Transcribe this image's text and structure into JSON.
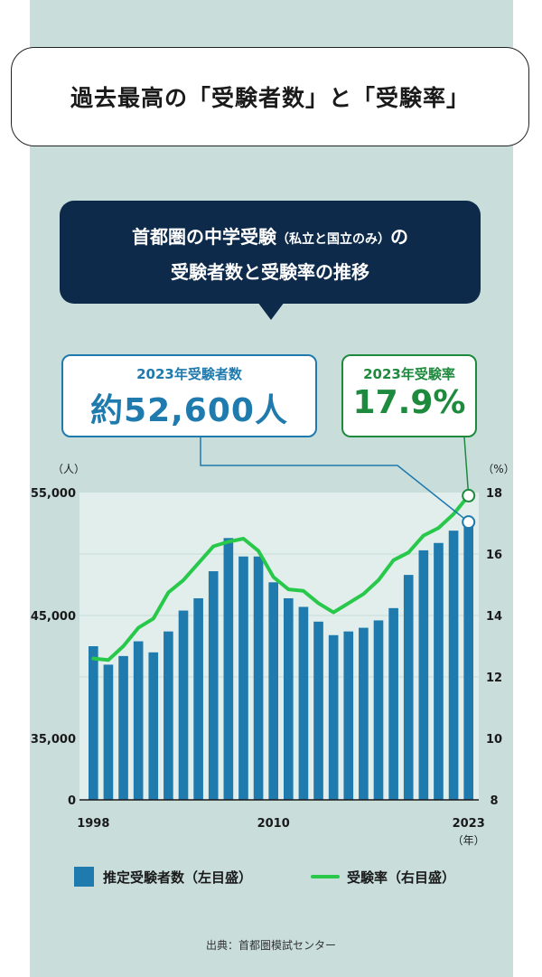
{
  "title": "過去最高の「受験者数」と「受験率」",
  "subtitle": {
    "line1_a": "首都圏の中学受験",
    "line1_b": "（私立と国立のみ）",
    "line1_c": "の",
    "line2": "受験者数と受験率の推移"
  },
  "callouts": {
    "count_label": "2023年受験者数",
    "count_value": "約52,600人",
    "rate_label": "2023年受験率",
    "rate_value": "17.9%"
  },
  "legend": {
    "bars": "推定受験者数（左目盛）",
    "line": "受験率（右目盛）"
  },
  "source": "出典：首都圏模試センター",
  "colors": {
    "bar": "#1f7aad",
    "line": "#28c84a",
    "background": "#c9dedb",
    "plot_background": "#e1eeec",
    "title_box": "#0d2a4a"
  },
  "chart_data": {
    "type": "bar",
    "x": [
      1998,
      1999,
      2000,
      2001,
      2002,
      2003,
      2004,
      2005,
      2006,
      2007,
      2008,
      2009,
      2010,
      2011,
      2012,
      2013,
      2014,
      2015,
      2016,
      2017,
      2018,
      2019,
      2020,
      2021,
      2022,
      2023
    ],
    "x_tick_labels": [
      "1998",
      "2010",
      "2023"
    ],
    "x_tick_values": [
      1998,
      2010,
      2023
    ],
    "x_unit": "（年）",
    "series": [
      {
        "name": "推定受験者数（左目盛）",
        "type": "bar",
        "axis": "left",
        "values": [
          42500,
          41000,
          41700,
          42900,
          42000,
          43700,
          45400,
          46400,
          48600,
          51300,
          49800,
          49800,
          47700,
          46400,
          45700,
          44500,
          43400,
          43700,
          44000,
          44600,
          45600,
          48300,
          50300,
          50900,
          51900,
          52600
        ]
      },
      {
        "name": "受験率（右目盛）",
        "type": "line",
        "axis": "right",
        "values": [
          12.6,
          12.55,
          13.0,
          13.6,
          13.9,
          14.75,
          15.15,
          15.7,
          16.25,
          16.4,
          16.5,
          16.1,
          15.25,
          14.85,
          14.8,
          14.4,
          14.1,
          14.4,
          14.7,
          15.15,
          15.8,
          16.05,
          16.6,
          16.85,
          17.3,
          17.9
        ]
      }
    ],
    "y_left": {
      "unit": "（人）",
      "ticks": [
        0,
        35000,
        45000,
        55000
      ],
      "tick_labels": [
        "0",
        "35,000",
        "45,000",
        "55,000"
      ],
      "range": [
        30000,
        55000
      ],
      "axis_break": true
    },
    "y_right": {
      "unit": "（%）",
      "ticks": [
        8,
        10,
        12,
        14,
        16,
        18
      ],
      "range": [
        8,
        18
      ]
    },
    "grid": "horizontal",
    "legend_position": "bottom"
  }
}
